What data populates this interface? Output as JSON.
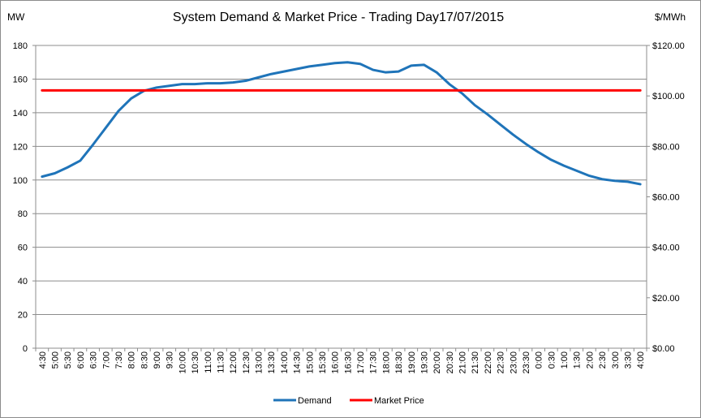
{
  "chart_data": {
    "type": "line",
    "title": "System Demand & Market Price - Trading Day17/07/2015",
    "y_left_unit": "MW",
    "y_right_unit": "$/MWh",
    "y_left_range": [
      0,
      180
    ],
    "y_left_ticks": [
      "0",
      "20",
      "40",
      "60",
      "80",
      "100",
      "120",
      "140",
      "160",
      "180"
    ],
    "y_right_range": [
      0,
      120
    ],
    "y_right_ticks": [
      "$0.00",
      "$20.00",
      "$40.00",
      "$60.00",
      "$80.00",
      "$100.00",
      "$120.00"
    ],
    "grid": "horizontal",
    "legend_position": "bottom",
    "categories": [
      "4:30",
      "5:00",
      "5:30",
      "6:00",
      "6:30",
      "7:00",
      "7:30",
      "8:00",
      "8:30",
      "9:00",
      "9:30",
      "10:00",
      "10:30",
      "11:00",
      "11:30",
      "12:00",
      "12:30",
      "13:00",
      "13:30",
      "14:00",
      "14:30",
      "15:00",
      "15:30",
      "16:00",
      "16:30",
      "17:00",
      "17:30",
      "18:00",
      "18:30",
      "19:00",
      "19:30",
      "20:00",
      "20:30",
      "21:00",
      "21:30",
      "22:00",
      "22:30",
      "23:00",
      "23:30",
      "0:00",
      "0:30",
      "1:00",
      "1:30",
      "2:00",
      "2:30",
      "3:00",
      "3:30",
      "4:00"
    ],
    "series": [
      {
        "name": "Demand",
        "axis": "left",
        "color": "#1f74b9",
        "values": [
          102,
          104,
          107.5,
          111.5,
          121,
          131,
          141,
          148.5,
          153,
          155,
          156,
          157,
          157,
          157.5,
          157.5,
          158,
          159,
          161,
          163,
          164.5,
          166,
          167.5,
          168.5,
          169.5,
          170,
          169,
          165.5,
          164,
          164.5,
          168,
          168.5,
          164,
          157,
          151.5,
          144.5,
          139,
          133,
          127,
          121.5,
          116.5,
          112,
          108.5,
          105.5,
          102.5,
          100.5,
          99.5,
          99,
          97.5
        ]
      },
      {
        "name": "Market Price",
        "axis": "right",
        "color": "#ff0000",
        "values": [
          102.18,
          102.18,
          102.18,
          102.18,
          102.18,
          102.18,
          102.18,
          102.18,
          102.18,
          102.18,
          102.18,
          102.18,
          102.18,
          102.18,
          102.18,
          102.18,
          102.18,
          102.18,
          102.18,
          102.18,
          102.18,
          102.18,
          102.18,
          102.18,
          102.18,
          102.18,
          102.18,
          102.18,
          102.18,
          102.18,
          102.18,
          102.18,
          102.18,
          102.18,
          102.18,
          102.18,
          102.18,
          102.18,
          102.18,
          102.18,
          102.18,
          102.18,
          102.18,
          102.18,
          102.18,
          102.18,
          102.18,
          102.18
        ]
      }
    ]
  }
}
